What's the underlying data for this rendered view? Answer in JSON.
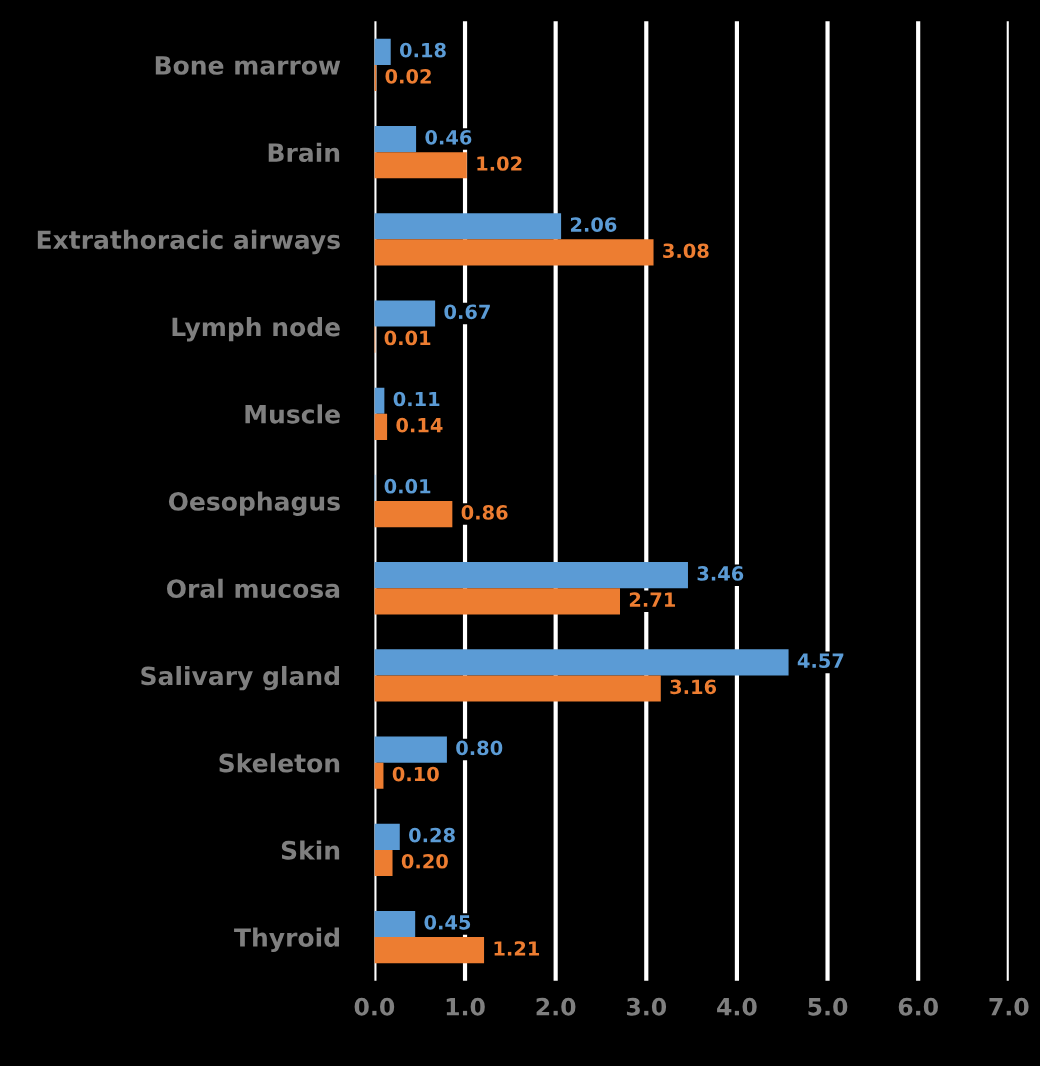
{
  "chart_data": {
    "type": "bar",
    "orientation": "horizontal",
    "categories": [
      "Bone marrow",
      "Brain",
      "Extrathoracic airways",
      "Lymph node",
      "Muscle",
      "Oesophagus",
      "Oral mucosa",
      "Salivary gland",
      "Skeleton",
      "Skin",
      "Thyroid"
    ],
    "series": [
      {
        "color": "#5b9bd5",
        "values": [
          0.18,
          0.46,
          2.06,
          0.67,
          0.11,
          0.01,
          3.46,
          4.57,
          0.8,
          0.28,
          0.45
        ],
        "value_labels": [
          "0.18",
          "0.46",
          "2.06",
          "0.67",
          "0.11",
          "0.01",
          "3.46",
          "4.57",
          "0.80",
          "0.28",
          "0.45"
        ]
      },
      {
        "color": "#ed7d31",
        "values": [
          0.02,
          1.02,
          3.08,
          0.01,
          0.14,
          0.86,
          2.71,
          3.16,
          0.1,
          0.2,
          1.21
        ],
        "value_labels": [
          "0.02",
          "1.02",
          "3.08",
          "0.01",
          "0.14",
          "0.86",
          "2.71",
          "3.16",
          "0.10",
          "0.20",
          "1.21"
        ]
      }
    ],
    "xlim": [
      0,
      7
    ],
    "xticks": [
      {
        "value": 0,
        "label": "0.0"
      },
      {
        "value": 1,
        "label": "1.0"
      },
      {
        "value": 2,
        "label": "2.0"
      },
      {
        "value": 3,
        "label": "3.0"
      },
      {
        "value": 4,
        "label": "4.0"
      },
      {
        "value": 5,
        "label": "5.0"
      },
      {
        "value": 6,
        "label": "6.0"
      },
      {
        "value": 7,
        "label": "7.0"
      }
    ],
    "grid": "x"
  }
}
